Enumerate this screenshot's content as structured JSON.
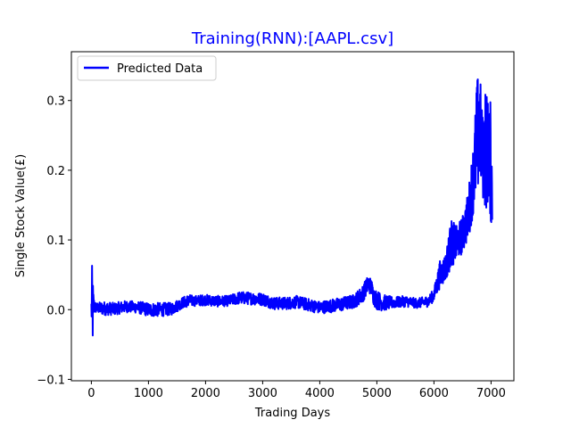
{
  "chart_data": {
    "type": "line",
    "title": "Training(RNN):[AAPL.csv]",
    "title_color": "#0000ff",
    "xlabel": "Trading Days",
    "ylabel": "Single Stock Value(£)",
    "xlim": [
      -350,
      7400
    ],
    "ylim": [
      -0.102,
      0.37
    ],
    "x_ticks": [
      0,
      1000,
      2000,
      3000,
      4000,
      5000,
      6000,
      7000
    ],
    "x_tick_labels": [
      "0",
      "1000",
      "2000",
      "3000",
      "4000",
      "5000",
      "6000",
      "7000"
    ],
    "y_ticks": [
      -0.1,
      0.0,
      0.1,
      0.2,
      0.3
    ],
    "y_tick_labels": [
      "−0.1",
      "0.0",
      "0.1",
      "0.2",
      "0.3"
    ],
    "grid": false,
    "legend": {
      "position": "top-left",
      "entries": [
        "Predicted Data"
      ]
    },
    "series": [
      {
        "name": "Predicted Data",
        "color": "#0000ff",
        "x": [
          0,
          15,
          30,
          45,
          60,
          100,
          200,
          400,
          600,
          800,
          1000,
          1200,
          1400,
          1600,
          1700,
          1800,
          2000,
          2200,
          2400,
          2600,
          2800,
          3000,
          3200,
          3400,
          3600,
          3800,
          4000,
          4200,
          4400,
          4600,
          4750,
          4850,
          4900,
          4950,
          5000,
          5100,
          5300,
          5500,
          5700,
          5900,
          6000,
          6100,
          6200,
          6300,
          6400,
          6500,
          6600,
          6700,
          6750,
          6800,
          6850,
          6900,
          6950,
          7000,
          7020
        ],
        "upper": [
          0.018,
          0.075,
          0.04,
          0.02,
          0.012,
          0.01,
          0.012,
          0.01,
          0.013,
          0.012,
          0.01,
          0.01,
          0.01,
          0.018,
          0.022,
          0.02,
          0.022,
          0.02,
          0.02,
          0.026,
          0.025,
          0.024,
          0.018,
          0.018,
          0.02,
          0.016,
          0.012,
          0.015,
          0.018,
          0.022,
          0.035,
          0.05,
          0.045,
          0.032,
          0.028,
          0.022,
          0.018,
          0.02,
          0.016,
          0.02,
          0.03,
          0.07,
          0.08,
          0.13,
          0.12,
          0.135,
          0.17,
          0.25,
          0.33,
          0.35,
          0.28,
          0.33,
          0.3,
          0.3,
          0.2
        ],
        "lower": [
          -0.01,
          -0.08,
          -0.04,
          -0.01,
          -0.005,
          -0.005,
          -0.008,
          -0.008,
          -0.004,
          -0.005,
          -0.01,
          -0.01,
          -0.008,
          0.002,
          0.004,
          0.005,
          0.006,
          0.004,
          0.005,
          0.008,
          0.007,
          0.006,
          0.0,
          0.0,
          0.002,
          -0.002,
          -0.006,
          -0.004,
          -0.002,
          0.002,
          0.01,
          0.025,
          0.02,
          0.005,
          0.0,
          -0.002,
          0.002,
          0.004,
          0.002,
          0.004,
          0.012,
          0.03,
          0.04,
          0.06,
          0.07,
          0.08,
          0.1,
          0.14,
          0.15,
          0.18,
          0.16,
          0.14,
          0.15,
          0.12,
          0.115
        ]
      }
    ]
  }
}
